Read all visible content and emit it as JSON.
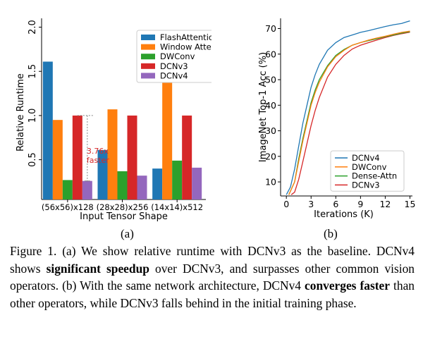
{
  "figure_a": {
    "subcaption": "(a)",
    "annotation": [
      "3.76x",
      "faster"
    ],
    "annotation_color": "#d62728",
    "chart_data": {
      "type": "bar",
      "categories": [
        "(56x56)x128",
        "(28x28)x256",
        "(14x14)x512"
      ],
      "series": [
        {
          "name": "FlashAttention",
          "color": "#1f77b4",
          "values": [
            1.61,
            0.61,
            0.4
          ]
        },
        {
          "name": "Window Attention",
          "color": "#ff7f0e",
          "values": [
            0.95,
            1.07,
            1.41
          ]
        },
        {
          "name": "DWConv",
          "color": "#2ca02c",
          "values": [
            0.27,
            0.37,
            0.49
          ]
        },
        {
          "name": "DCNv3",
          "color": "#d62728",
          "values": [
            1.0,
            1.0,
            1.0
          ]
        },
        {
          "name": "DCNv4",
          "color": "#9467bd",
          "values": [
            0.26,
            0.32,
            0.41
          ]
        }
      ],
      "xlabel": "Input Tensor Shape",
      "ylabel": "Relative Runtime",
      "yticks": [
        "0.5",
        "1.0",
        "1.5",
        "2.0"
      ],
      "ytick_values": [
        0.5,
        1.0,
        1.5,
        2.0
      ],
      "ylim": [
        0.05,
        2.1
      ],
      "legend_position": "top-right",
      "grid": false
    }
  },
  "figure_b": {
    "subcaption": "(b)",
    "chart_data": {
      "type": "line",
      "xlabel": "Iterations (K)",
      "ylabel": "ImageNet Top-1 Acc (%)",
      "xticks": [
        "0",
        "3",
        "6",
        "9",
        "12",
        "15"
      ],
      "xtick_values": [
        0,
        3,
        6,
        9,
        12,
        15
      ],
      "yticks": [
        "10",
        "20",
        "30",
        "40",
        "50",
        "60",
        "70"
      ],
      "ytick_values": [
        10,
        20,
        30,
        40,
        50,
        60,
        70
      ],
      "xlim": [
        -0.7,
        15.3
      ],
      "ylim": [
        4.5,
        74
      ],
      "legend_position": "bottom-right",
      "grid": false,
      "series": [
        {
          "name": "DCNv4",
          "color": "#1f77b4",
          "x": [
            0,
            0.5,
            1,
            1.5,
            2,
            2.5,
            3,
            3.5,
            4,
            5,
            6,
            7,
            8,
            9,
            10,
            11,
            12,
            13,
            14,
            14.5,
            15
          ],
          "y": [
            5,
            8,
            15,
            24,
            33,
            40,
            47,
            52,
            56,
            61.5,
            64.5,
            66.5,
            67.5,
            68.5,
            69.2,
            70,
            70.8,
            71.5,
            72,
            72.5,
            73
          ]
        },
        {
          "name": "DWConv",
          "color": "#ff7f0e",
          "x": [
            0.3,
            1,
            1.5,
            2,
            2.5,
            3,
            3.5,
            4,
            5,
            6,
            7,
            8,
            9,
            10,
            11,
            12,
            13,
            14,
            15
          ],
          "y": [
            5,
            10,
            18,
            26,
            33,
            40,
            45,
            49,
            55,
            59,
            61.5,
            63.5,
            64.5,
            65.5,
            66.3,
            67,
            67.8,
            68.5,
            69
          ]
        },
        {
          "name": "Dense-Attn",
          "color": "#2ca02c",
          "x": [
            0.3,
            1,
            1.5,
            2,
            2.5,
            3,
            3.5,
            4,
            5,
            6,
            7,
            8,
            9,
            10,
            11,
            12,
            13,
            14,
            15
          ],
          "y": [
            5,
            10,
            19,
            27,
            34,
            41,
            46,
            50,
            55.5,
            59.5,
            61.8,
            63.5,
            64.5,
            65.3,
            66,
            66.8,
            67.5,
            68.2,
            68.8
          ]
        },
        {
          "name": "DCNv3",
          "color": "#d62728",
          "x": [
            0.6,
            1,
            1.5,
            2,
            2.5,
            3,
            3.5,
            4,
            5,
            6,
            7,
            8,
            9,
            10,
            11,
            12,
            13,
            14,
            15
          ],
          "y": [
            5,
            6,
            11,
            18,
            25,
            32,
            38,
            43,
            51,
            56,
            59.5,
            62,
            63.5,
            64.5,
            65.5,
            66.5,
            67.3,
            68,
            68.6
          ]
        }
      ]
    }
  },
  "caption": {
    "label": "Figure 1.",
    "part_a": " (a) We show relative runtime with DCNv3 as the baseline. DCNv4 shows ",
    "bold_1": "significant speedup",
    "part_b": " over DCNv3, and surpasses other common vision operators.  (b) With the same network architecture, DCNv4 ",
    "bold_2": "converges faster",
    "part_c": " than other operators, while DCNv3 falls behind in the initial training phase."
  }
}
